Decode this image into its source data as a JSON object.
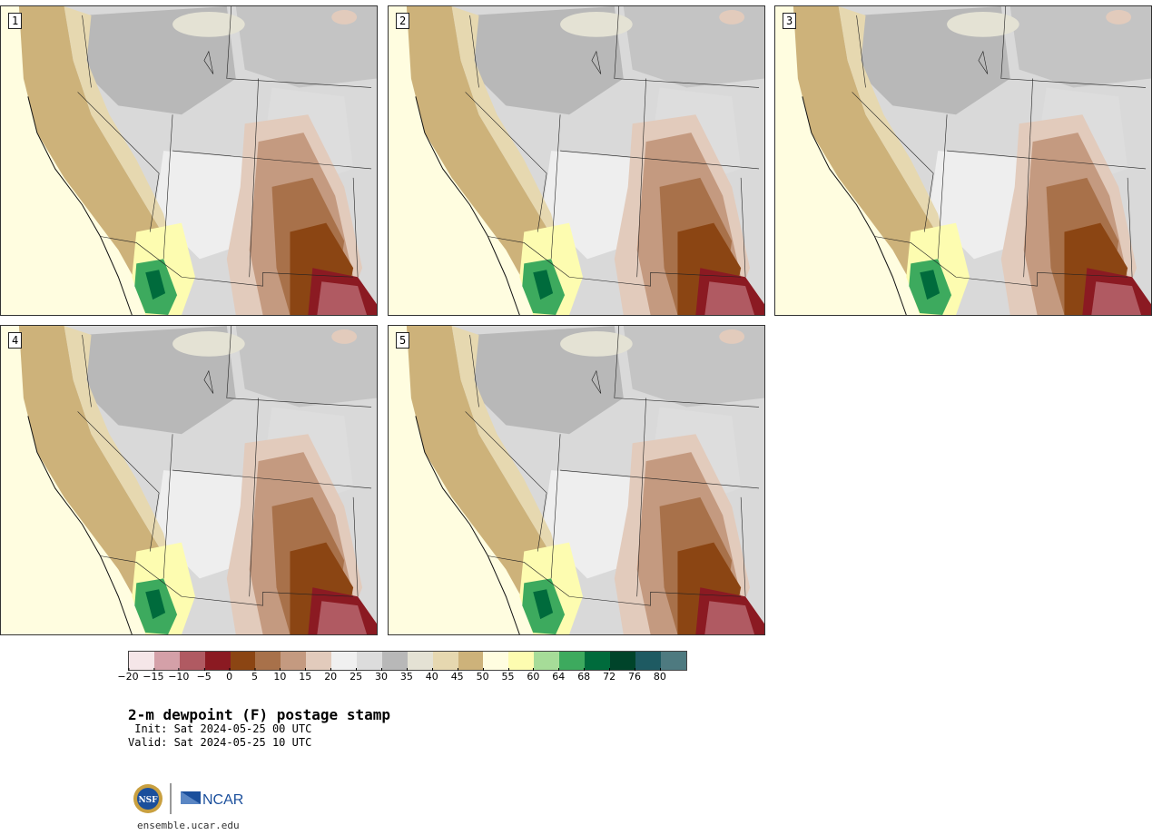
{
  "panels": [
    {
      "label": "1"
    },
    {
      "label": "2"
    },
    {
      "label": "3"
    },
    {
      "label": "4"
    },
    {
      "label": "5"
    }
  ],
  "legend": {
    "colors": [
      "#f5e6e8",
      "#d4a0a8",
      "#b05a62",
      "#8b1a22",
      "#8b4513",
      "#a8714a",
      "#c49a80",
      "#e2cbbc",
      "#f0f0f0",
      "#dcdcdc",
      "#b8b8b8",
      "#e4e2d4",
      "#e6d8b0",
      "#cdb27a",
      "#fffde0",
      "#fdfcb0",
      "#a6dc98",
      "#3daa5e",
      "#006b3c",
      "#00442a",
      "#1e5a62",
      "#4e7a80"
    ],
    "ticks": [
      "−20",
      "−15",
      "−10",
      "−5",
      "0",
      "5",
      "10",
      "15",
      "20",
      "25",
      "30",
      "35",
      "40",
      "45",
      "50",
      "55",
      "60",
      "64",
      "68",
      "72",
      "76",
      "80"
    ]
  },
  "title": "2-m dewpoint (F) postage stamp",
  "init": " Init: Sat 2024-05-25 00 UTC",
  "valid": "Valid: Sat 2024-05-25 10 UTC",
  "logo": {
    "nsf_text": "NSF",
    "ncar_text": "NCAR"
  },
  "site": "ensemble.ucar.edu"
}
